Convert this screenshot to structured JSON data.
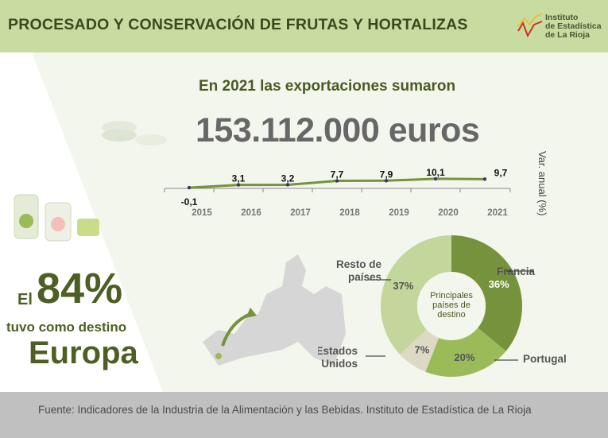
{
  "header": {
    "title": "PROCESADO Y CONSERVACIÓN  DE FRUTAS Y HORTALIZAS",
    "logo_text": [
      "Instituto",
      "de Estadística",
      "de La Rioja"
    ]
  },
  "main": {
    "subtitle": "En 2021 las exportaciones sumaron",
    "total": "153.112.000 euros"
  },
  "europe": {
    "prefix": "El",
    "percent": "84%",
    "line": "tuvo como destino",
    "destination": "Europa"
  },
  "chart_data": [
    {
      "type": "line",
      "ylabel": "Var. anual (%)",
      "categories": [
        "2015",
        "2016",
        "2017",
        "2018",
        "2019",
        "2020",
        "2021"
      ],
      "values": [
        -0.1,
        3.1,
        3.2,
        7.7,
        7.9,
        10.1,
        9.7
      ],
      "labels": [
        "-0,1",
        "3,1",
        "3,2",
        "7,7",
        "7,9",
        "10,1",
        "9,7"
      ],
      "color": "#76923c"
    },
    {
      "type": "pie",
      "donut": true,
      "center_label": "Principales países de destino",
      "slices": [
        {
          "name": "Francia",
          "value": 36,
          "label": "36%",
          "color": "#76923c"
        },
        {
          "name": "Portugal",
          "value": 20,
          "label": "20%",
          "color": "#9bbb59"
        },
        {
          "name": "Estados Unidos",
          "value": 7,
          "label": "7%",
          "color": "#ddd9c4"
        },
        {
          "name": "Resto de países",
          "value": 37,
          "label": "37%",
          "color": "#c3d69b"
        }
      ]
    }
  ],
  "footer": {
    "source": "Fuente: Indicadores de la Industria de la Alimentación y las Bebidas. Instituto de Estadística de La Rioja"
  }
}
